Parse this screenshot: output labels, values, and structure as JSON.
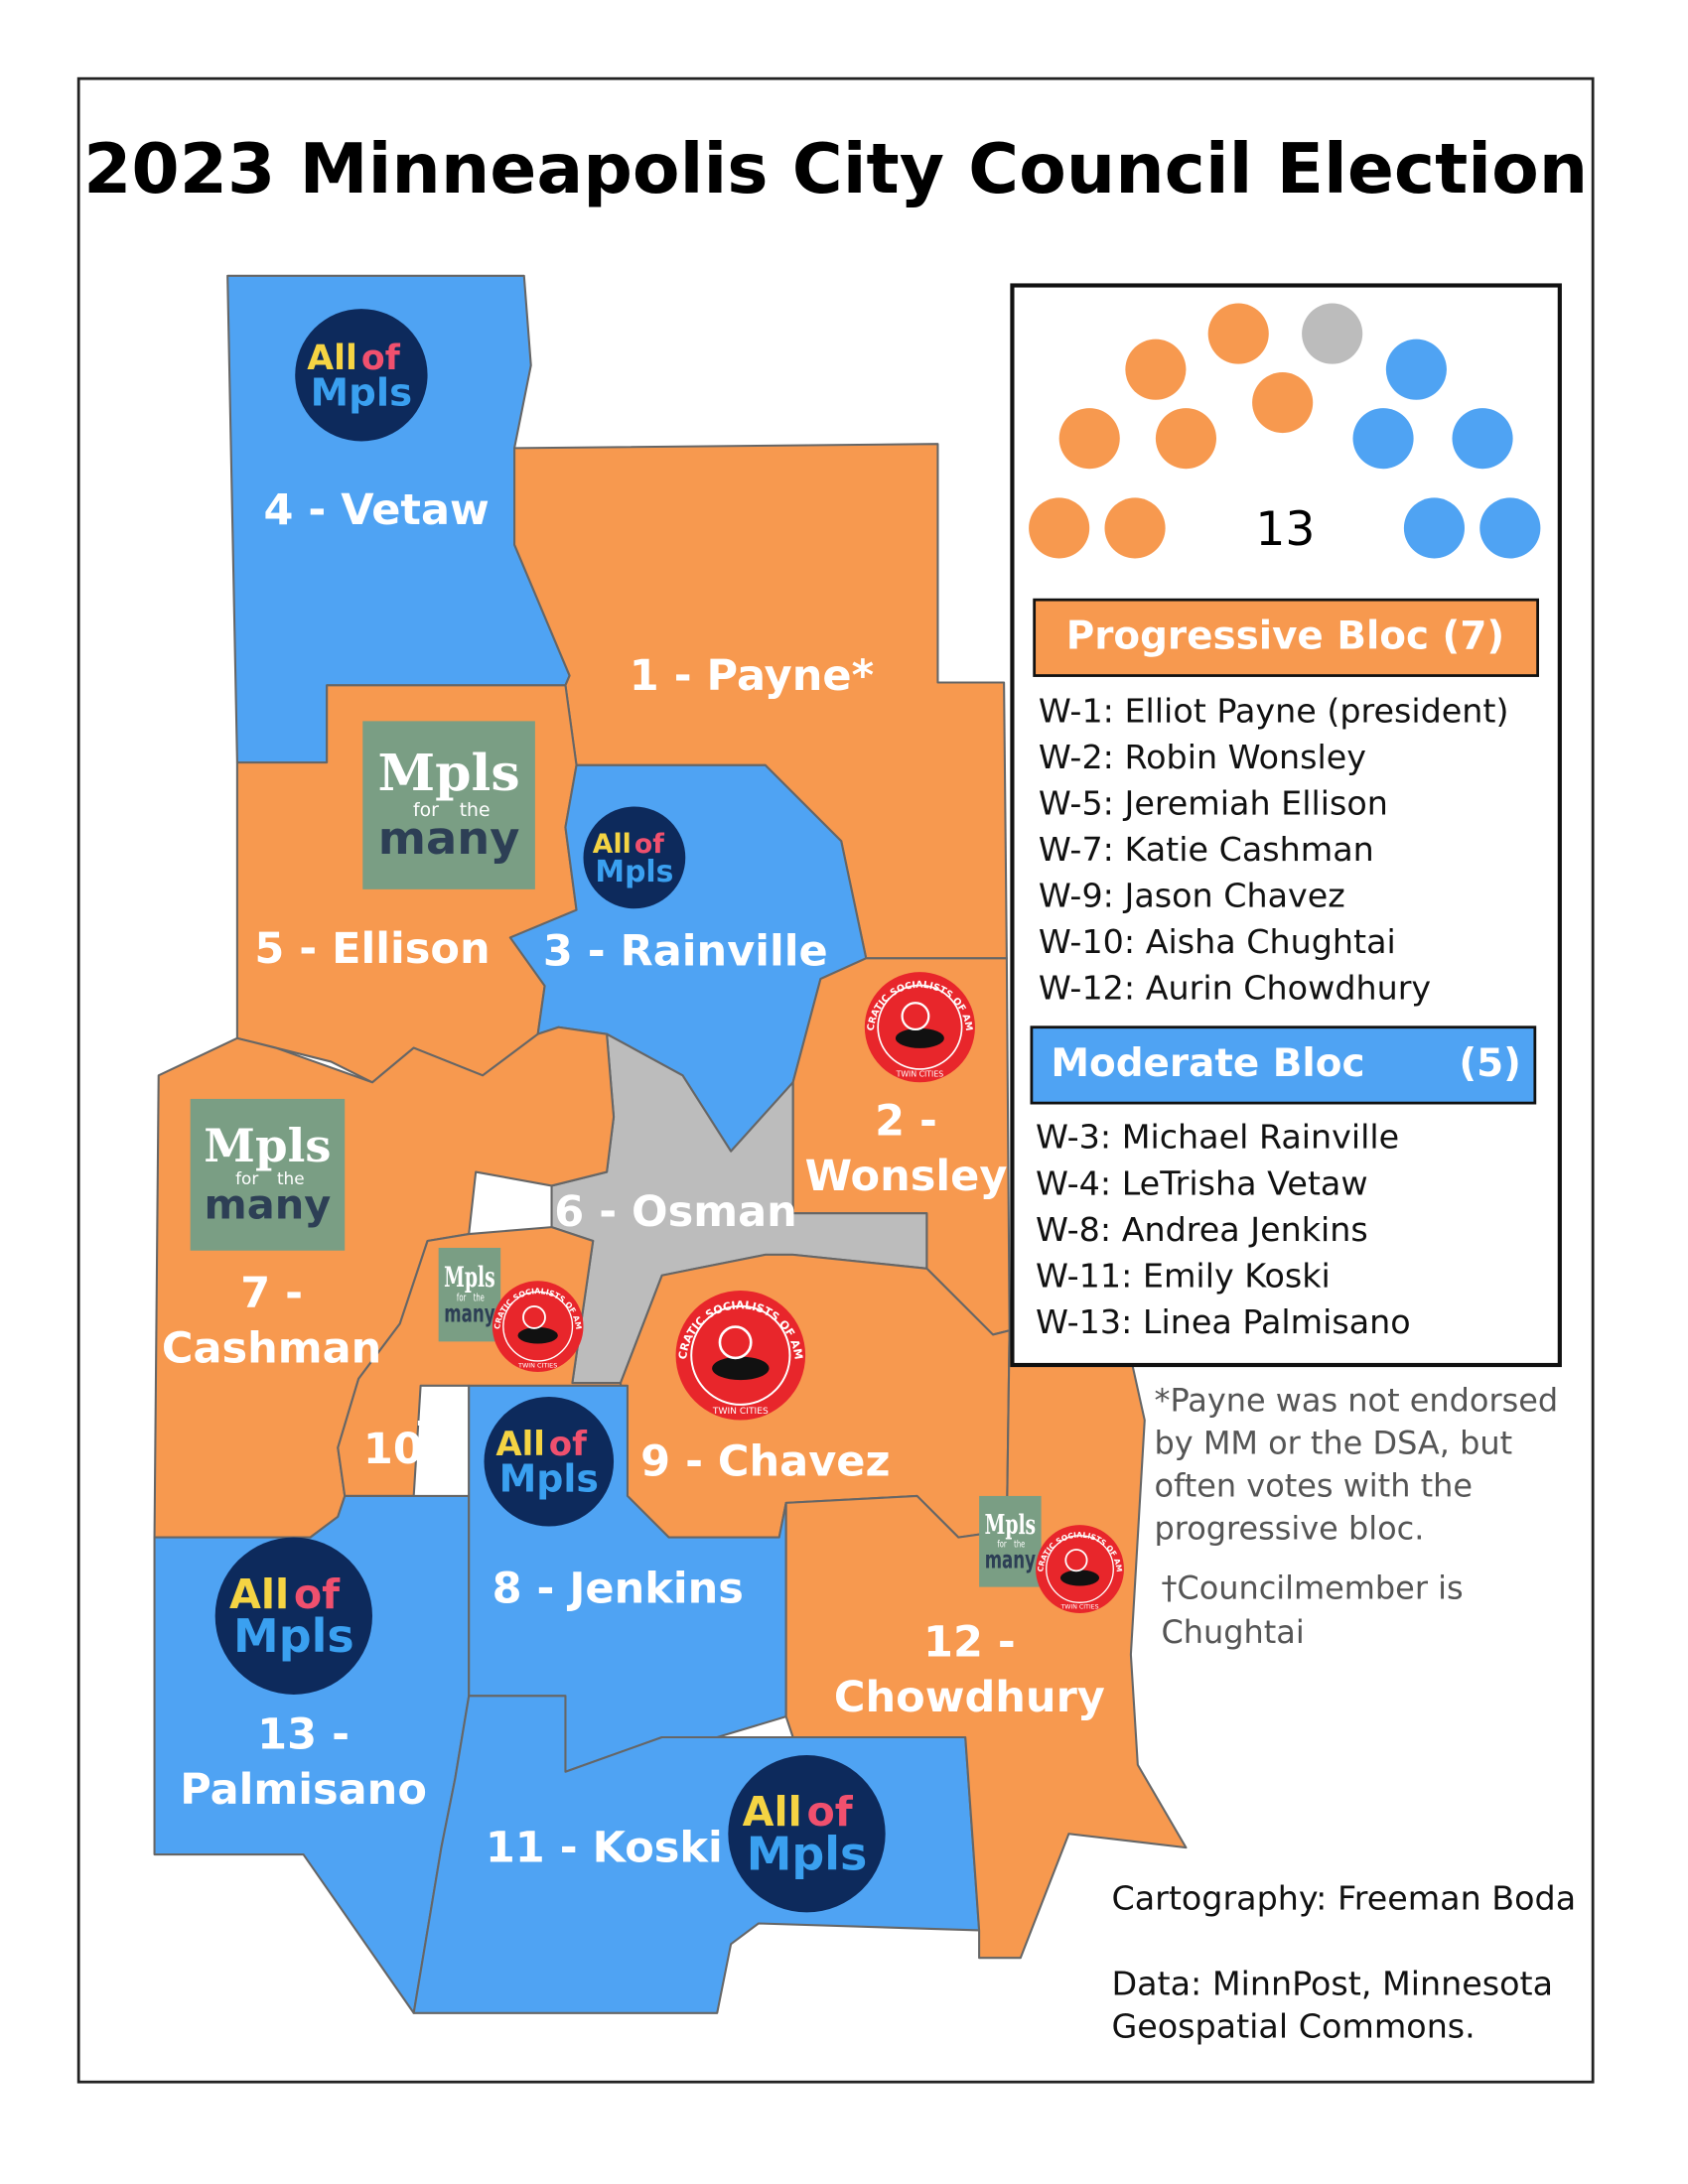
{
  "title": "2023 Minneapolis City Council Election",
  "colors": {
    "progressive": "#f7994f",
    "moderate": "#4fa3f3",
    "other": "#bcbcbc"
  },
  "seat_chart": {
    "total": 13,
    "groups": [
      {
        "bloc": "progressive",
        "count": 7
      },
      {
        "bloc": "other",
        "count": 1
      },
      {
        "bloc": "moderate",
        "count": 5
      }
    ]
  },
  "legend": {
    "progressive": {
      "label": "Progressive Bloc (7)",
      "members": [
        "W-1: Elliot Payne (president)",
        "W-2: Robin Wonsley",
        "W-5: Jeremiah Ellison",
        "W-7: Katie Cashman",
        "W-9: Jason Chavez",
        "W-10: Aisha Chughtai",
        "W-12: Aurin Chowdhury"
      ]
    },
    "moderate": {
      "label": "Moderate Bloc",
      "count": "(5)",
      "members": [
        "W-3: Michael Rainville",
        "W-4: LeTrisha Vetaw",
        "W-8: Andrea Jenkins",
        "W-11: Emily Koski",
        "W-13: Linea Palmisano"
      ]
    }
  },
  "wards": [
    {
      "label": [
        "4 - Vetaw"
      ],
      "bloc": "moderate"
    },
    {
      "label": [
        "1 - Payne*"
      ],
      "bloc": "progressive"
    },
    {
      "label": [
        "5 - Ellison"
      ],
      "bloc": "progressive"
    },
    {
      "label": [
        "3 - Rainville"
      ],
      "bloc": "moderate"
    },
    {
      "label": [
        "2 -",
        "Wonsley"
      ],
      "bloc": "progressive"
    },
    {
      "label": [
        "6 - Osman"
      ],
      "bloc": "other"
    },
    {
      "label": [
        "7 -",
        "Cashman"
      ],
      "bloc": "progressive"
    },
    {
      "label": [
        "10"
      ],
      "mark": "†",
      "bloc": "progressive"
    },
    {
      "label": [
        "9 - Chavez"
      ],
      "bloc": "progressive"
    },
    {
      "label": [
        "13 -",
        "Palmisano"
      ],
      "bloc": "moderate"
    },
    {
      "label": [
        "8 - Jenkins"
      ],
      "bloc": "moderate"
    },
    {
      "label": [
        "11 - Koski"
      ],
      "bloc": "moderate"
    },
    {
      "label": [
        "12 -",
        "Chowdhury"
      ],
      "bloc": "progressive"
    }
  ],
  "logos": {
    "all_of_mpls": {
      "top": "All",
      "of": "of",
      "bottom": "Mpls"
    },
    "mpls_for_the_many": {
      "top": "Mpls",
      "for": "for",
      "the": "the",
      "bottom": "many"
    },
    "dsa": {
      "ring": "DEMOCRATIC SOCIALISTS OF AMERICA",
      "city": "TWIN CITIES"
    }
  },
  "notes": {
    "payne": [
      "*Payne was not endorsed",
      "by MM or the DSA, but",
      "often votes with the",
      "progressive bloc."
    ],
    "dagger": [
      "†Councilmember is",
      "Chughtai"
    ]
  },
  "credits": {
    "cartography": "Cartography: Freeman Boda",
    "data": [
      "Data: MinnPost, Minnesota",
      "Geospatial Commons."
    ]
  }
}
